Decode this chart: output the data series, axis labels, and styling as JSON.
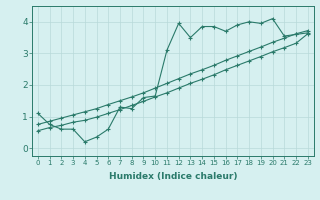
{
  "xlabel": "Humidex (Indice chaleur)",
  "bg_color": "#d6f0f0",
  "line_color": "#2a7a6a",
  "grid_color": "#b8dada",
  "xlim": [
    -0.5,
    23.5
  ],
  "ylim": [
    -0.25,
    4.5
  ],
  "xticks": [
    0,
    1,
    2,
    3,
    4,
    5,
    6,
    7,
    8,
    9,
    10,
    11,
    12,
    13,
    14,
    15,
    16,
    17,
    18,
    19,
    20,
    21,
    22,
    23
  ],
  "yticks": [
    0,
    1,
    2,
    3,
    4
  ],
  "line1_x": [
    0,
    1,
    2,
    3,
    4,
    5,
    6,
    7,
    8,
    9,
    10,
    11,
    12,
    13,
    14,
    15,
    16,
    17,
    18,
    19,
    20,
    21,
    22,
    23
  ],
  "line1_y": [
    1.1,
    0.75,
    0.6,
    0.6,
    0.2,
    0.35,
    0.6,
    1.3,
    1.25,
    1.6,
    1.65,
    3.1,
    3.95,
    3.5,
    3.85,
    3.85,
    3.7,
    3.9,
    4.0,
    3.95,
    4.1,
    3.55,
    3.6,
    3.65
  ],
  "line2_x": [
    0,
    1,
    2,
    3,
    4,
    5,
    6,
    7,
    8,
    9,
    10,
    11,
    12,
    13,
    14,
    15,
    16,
    17,
    18,
    19,
    20,
    21,
    22,
    23
  ],
  "line2_y": [
    0.55,
    0.65,
    0.72,
    0.82,
    0.88,
    0.98,
    1.1,
    1.22,
    1.35,
    1.48,
    1.62,
    1.75,
    1.9,
    2.05,
    2.18,
    2.32,
    2.48,
    2.62,
    2.76,
    2.9,
    3.05,
    3.18,
    3.32,
    3.62
  ],
  "line3_x": [
    0,
    1,
    2,
    3,
    4,
    5,
    6,
    7,
    8,
    9,
    10,
    11,
    12,
    13,
    14,
    15,
    16,
    17,
    18,
    19,
    20,
    21,
    22,
    23
  ],
  "line3_y": [
    0.75,
    0.85,
    0.95,
    1.05,
    1.15,
    1.25,
    1.38,
    1.5,
    1.62,
    1.75,
    1.9,
    2.05,
    2.2,
    2.35,
    2.48,
    2.62,
    2.78,
    2.92,
    3.06,
    3.2,
    3.35,
    3.48,
    3.62,
    3.72
  ]
}
